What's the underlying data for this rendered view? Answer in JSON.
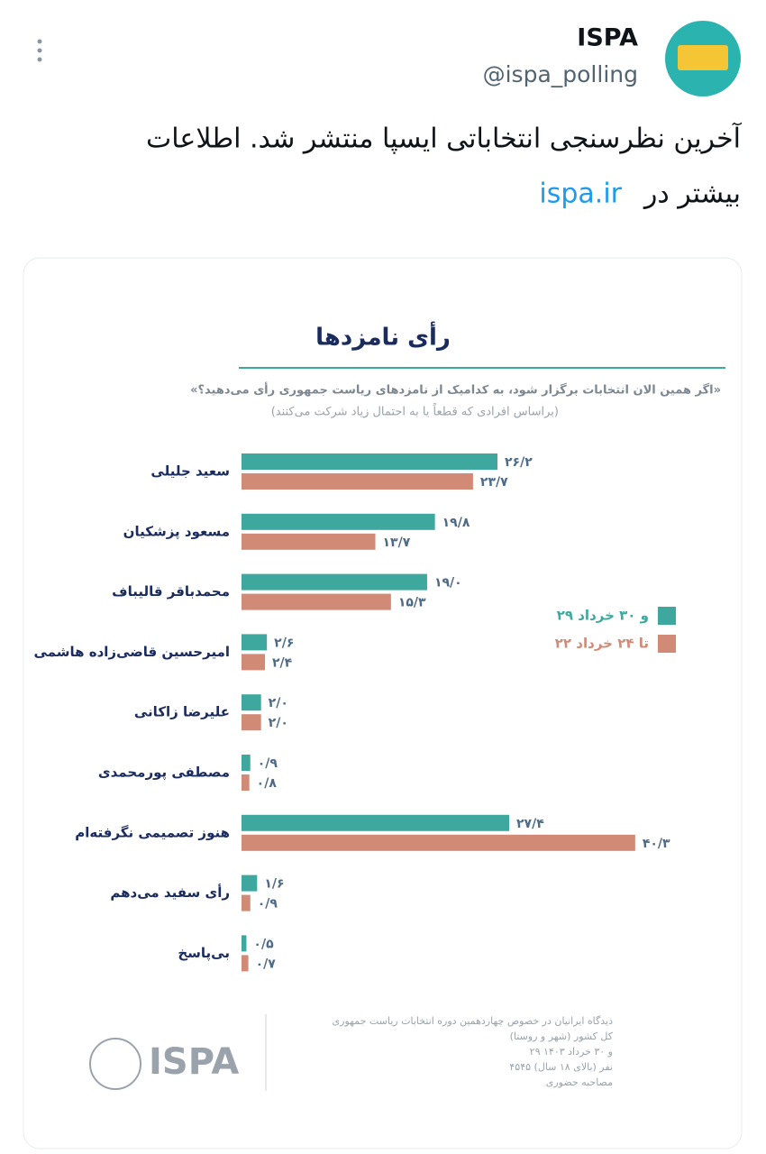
{
  "tweet": {
    "name": "ISPA",
    "handle": "@ispa_polling",
    "text": [
      "آخرین نظرسنجی انتخاباتی ایسپا منتشر شد. اطلاعات",
      "بیشتر در"
    ],
    "link": "ispa.ir"
  },
  "chart_data": {
    "type": "bar",
    "orientation": "horizontal",
    "title": "رأی نامزدها",
    "subtitle": "«اگر همین الان انتخابات برگزار شود، به کدامیک از نامزدهای ریاست جمهوری رأی می‌دهید؟»",
    "note": "(براساس افرادی که قطعاً یا به احتمال زیاد شرکت می‌کنند)",
    "categories": [
      "سعید جلیلی",
      "مسعود پزشکیان",
      "محمدباقر قالیباف",
      "امیرحسین قاضی‌زاده هاشمی",
      "علیرضا زاکانی",
      "مصطفی پورمحمدی",
      "هنوز تصمیمی نگرفته‌ام",
      "رأی سفید می‌دهم",
      "بی‌پاسخ"
    ],
    "series": [
      {
        "name": "۲۹ و ۳۰ خرداد",
        "color": "#3fa89e",
        "values": [
          26.2,
          19.8,
          19.0,
          2.6,
          2.0,
          0.9,
          27.4,
          1.6,
          0.5
        ],
        "value_labels": [
          "۲۶/۲",
          "۱۹/۸",
          "۱۹/۰",
          "۲/۶",
          "۲/۰",
          "۰/۹",
          "۲۷/۴",
          "۱/۶",
          "۰/۵"
        ]
      },
      {
        "name": "۲۲ تا ۲۴ خرداد",
        "color": "#d08a76",
        "values": [
          23.7,
          13.7,
          15.3,
          2.4,
          2.0,
          0.8,
          40.3,
          0.9,
          0.7
        ],
        "value_labels": [
          "۲۳/۷",
          "۱۳/۷",
          "۱۵/۳",
          "۲/۴",
          "۲/۰",
          "۰/۸",
          "۴۰/۳",
          "۰/۹",
          "۰/۷"
        ]
      }
    ],
    "legend": "right",
    "footer": [
      "دیدگاه ایرانیان در خصوص چهاردهمین دوره انتخابات ریاست جمهوری",
      "کل کشور (شهر و روستا)",
      "۲۹ و ۳۰ خرداد ۱۴۰۳",
      "۴۵۴۵ نفر (بالای ۱۸ سال)",
      "مصاحبه حضوری"
    ],
    "logo": "ISPA"
  }
}
